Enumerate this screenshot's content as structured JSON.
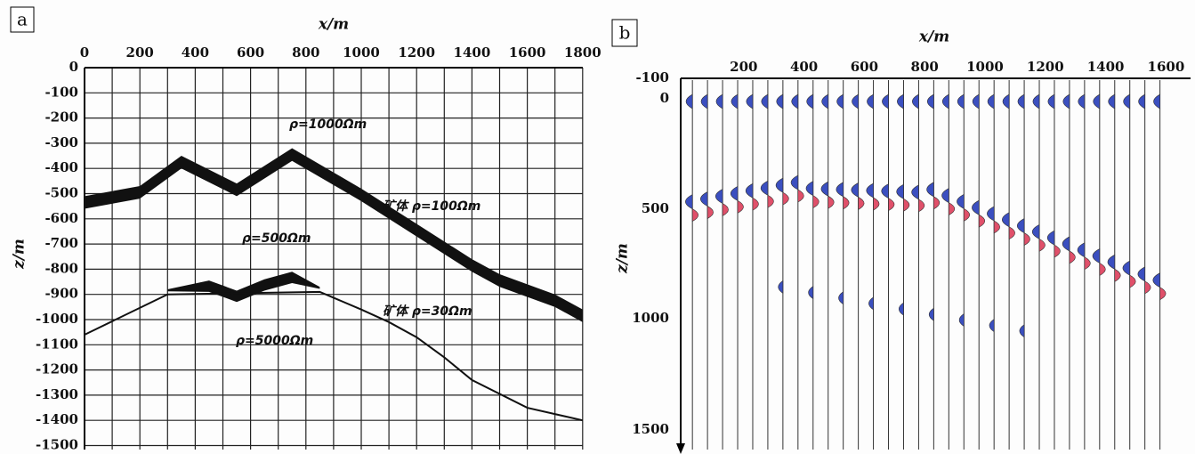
{
  "panel_a": {
    "label": "a",
    "x_axis_title": "x/m",
    "y_axis_title": "z/m",
    "x_ticks": [
      "0",
      "200",
      "400",
      "600",
      "800",
      "1000",
      "1200",
      "1400",
      "1600",
      "1800"
    ],
    "y_ticks": [
      "0",
      "-100",
      "-200",
      "-300",
      "-400",
      "-500",
      "-600",
      "-700",
      "-800",
      "-900",
      "-1000",
      "-1100",
      "-1200",
      "-1300",
      "-1400",
      "-1500"
    ],
    "annotations": [
      "ρ=1000Ωm",
      "矿体 ρ=100Ωm",
      "ρ=500Ωm",
      "矿体 ρ=30Ωm",
      "ρ=5000Ωm"
    ]
  },
  "panel_b": {
    "label": "b",
    "x_axis_title": "x/m",
    "y_axis_title": "z/m",
    "x_ticks": [
      "200",
      "400",
      "600",
      "800",
      "1000",
      "1200",
      "1400",
      "1600"
    ],
    "y_ticks": [
      "-100",
      "0",
      "500",
      "1000",
      "1500"
    ]
  }
}
